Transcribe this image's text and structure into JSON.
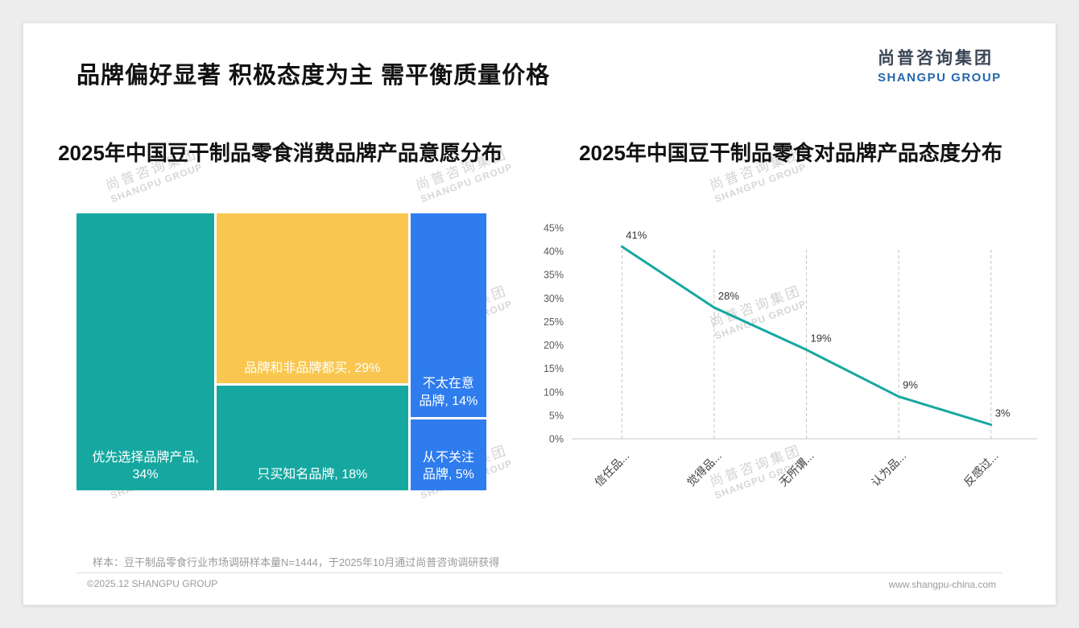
{
  "header": {
    "title": "品牌偏好显著 积极态度为主 需平衡质量价格",
    "logo_cn": "尚普咨询集团",
    "logo_en": "SHANGPU GROUP"
  },
  "watermark": {
    "line1": "尚普咨询集团",
    "line2": "SHANGPU GROUP"
  },
  "colors": {
    "teal": "#16a8a0",
    "yellow": "#f9c74f",
    "blue": "#2e7cee",
    "line": "#16a8a0"
  },
  "chart_data": [
    {
      "type": "treemap",
      "title": "2025年中国豆干制品零食消费品牌产品意愿分布",
      "unit": "%",
      "blocks": [
        {
          "label": "优先选择品牌产品",
          "value": 34,
          "display": "优先选择品牌产品, 34%",
          "color_key": "teal"
        },
        {
          "label": "品牌和非品牌都买",
          "value": 29,
          "display": "品牌和非品牌都买, 29%",
          "color_key": "yellow"
        },
        {
          "label": "只买知名品牌",
          "value": 18,
          "display": "只买知名品牌, 18%",
          "color_key": "teal"
        },
        {
          "label": "不太在意品牌",
          "value": 14,
          "display": "不太在意品牌, 14%",
          "color_key": "blue"
        },
        {
          "label": "从不关注品牌",
          "value": 5,
          "display": "从不关注品牌, 5%",
          "color_key": "blue"
        }
      ],
      "layout_columns": [
        [
          0
        ],
        [
          1,
          2
        ],
        [
          3,
          4
        ]
      ]
    },
    {
      "type": "line",
      "title": "2025年中国豆干制品零食对品牌产品态度分布",
      "categories": [
        "信任品...",
        "觉得品...",
        "无所谓...",
        "认为品...",
        "反感过..."
      ],
      "values": [
        41,
        28,
        19,
        9,
        3
      ],
      "point_labels": [
        "41%",
        "28%",
        "19%",
        "9%",
        "3%"
      ],
      "ylim": [
        0,
        45
      ],
      "ytick_step": 5,
      "ytick_labels": [
        "0%",
        "5%",
        "10%",
        "15%",
        "20%",
        "25%",
        "30%",
        "35%",
        "40%",
        "45%"
      ],
      "grid": "dashed-vertical",
      "legend": "none"
    }
  ],
  "footer": {
    "note": "样本：豆干制品零食行业市场调研样本量N=1444，于2025年10月通过尚普咨询调研获得",
    "left": "©2025.12 SHANGPU GROUP",
    "right": "www.shangpu-china.com"
  }
}
